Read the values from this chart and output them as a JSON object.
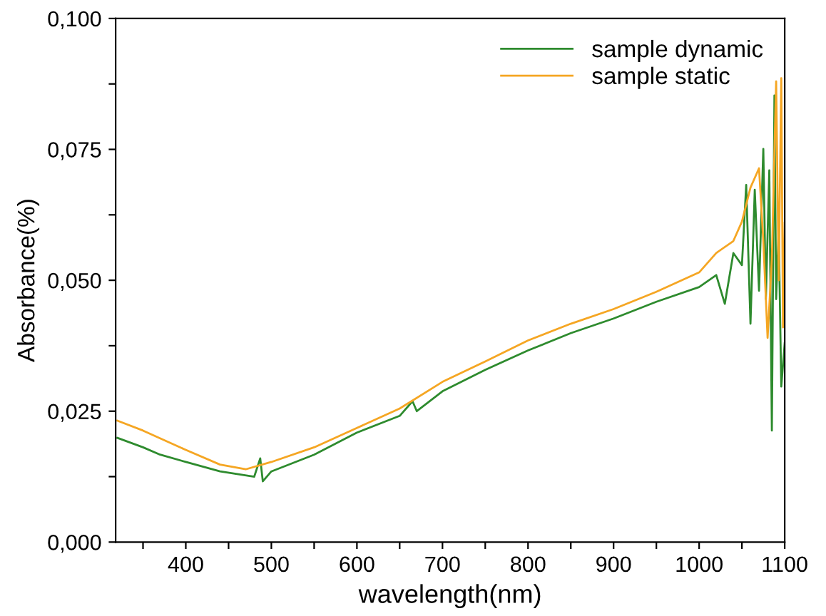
{
  "chart_data": {
    "type": "line",
    "xlabel": "wavelength(nm)",
    "ylabel": "Absorbance(%)",
    "xlim": [
      318,
      1100
    ],
    "ylim": [
      0,
      0.1
    ],
    "xticks": [
      {
        "value": 350,
        "label": null
      },
      400,
      {
        "value": 450,
        "label": null
      },
      500,
      {
        "value": 550,
        "label": null
      },
      600,
      {
        "value": 650,
        "label": null
      },
      700,
      {
        "value": 750,
        "label": null
      },
      800,
      {
        "value": 850,
        "label": null
      },
      900,
      {
        "value": 950,
        "label": null
      },
      1000,
      {
        "value": 1050,
        "label": null
      },
      1100
    ],
    "yticks": [
      {
        "value": 0,
        "label": "0,000"
      },
      {
        "value": 0.0125,
        "label": null
      },
      {
        "value": 0.025,
        "label": "0,025"
      },
      {
        "value": 0.0375,
        "label": null
      },
      {
        "value": 0.05,
        "label": "0,050"
      },
      {
        "value": 0.0625,
        "label": null
      },
      {
        "value": 0.075,
        "label": "0,075"
      },
      {
        "value": 0.0875,
        "label": null
      },
      {
        "value": 0.1,
        "label": "0,100"
      }
    ],
    "grid": false,
    "legend": "top right",
    "marker": "none",
    "line_style": "solid",
    "series": [
      {
        "name": "sample dynamic",
        "color": "#2e8b2e",
        "x": [
          320,
          350,
          370,
          400,
          440,
          480,
          487,
          490,
          500,
          550,
          600,
          650,
          665,
          670,
          700,
          750,
          800,
          850,
          900,
          950,
          1000,
          1020,
          1030,
          1040,
          1050,
          1055,
          1060,
          1065,
          1070,
          1075,
          1078,
          1082,
          1085,
          1088,
          1090,
          1093,
          1096,
          1100
        ],
        "values": [
          0.0199,
          0.0181,
          0.0167,
          0.0153,
          0.0135,
          0.0125,
          0.016,
          0.0116,
          0.0135,
          0.0167,
          0.0209,
          0.0241,
          0.0269,
          0.025,
          0.0288,
          0.0329,
          0.0366,
          0.0399,
          0.0427,
          0.0459,
          0.0487,
          0.051,
          0.0455,
          0.0552,
          0.0529,
          0.0682,
          0.0417,
          0.0673,
          0.048,
          0.0751,
          0.0464,
          0.071,
          0.0213,
          0.0853,
          0.0464,
          0.0594,
          0.0297,
          0.038
        ]
      },
      {
        "name": "sample static",
        "color": "#f5a623",
        "x": [
          320,
          350,
          400,
          440,
          470,
          500,
          550,
          600,
          650,
          700,
          750,
          800,
          850,
          900,
          950,
          1000,
          1020,
          1040,
          1050,
          1060,
          1070,
          1075,
          1080,
          1085,
          1090,
          1093,
          1096,
          1098,
          1100
        ],
        "values": [
          0.0232,
          0.0213,
          0.0176,
          0.0148,
          0.0139,
          0.0153,
          0.0181,
          0.0218,
          0.0255,
          0.0306,
          0.0345,
          0.0385,
          0.0417,
          0.0445,
          0.0478,
          0.0515,
          0.0552,
          0.0575,
          0.0612,
          0.0677,
          0.0714,
          0.0575,
          0.039,
          0.054,
          0.088,
          0.05,
          0.0886,
          0.041,
          0.061
        ]
      }
    ]
  }
}
